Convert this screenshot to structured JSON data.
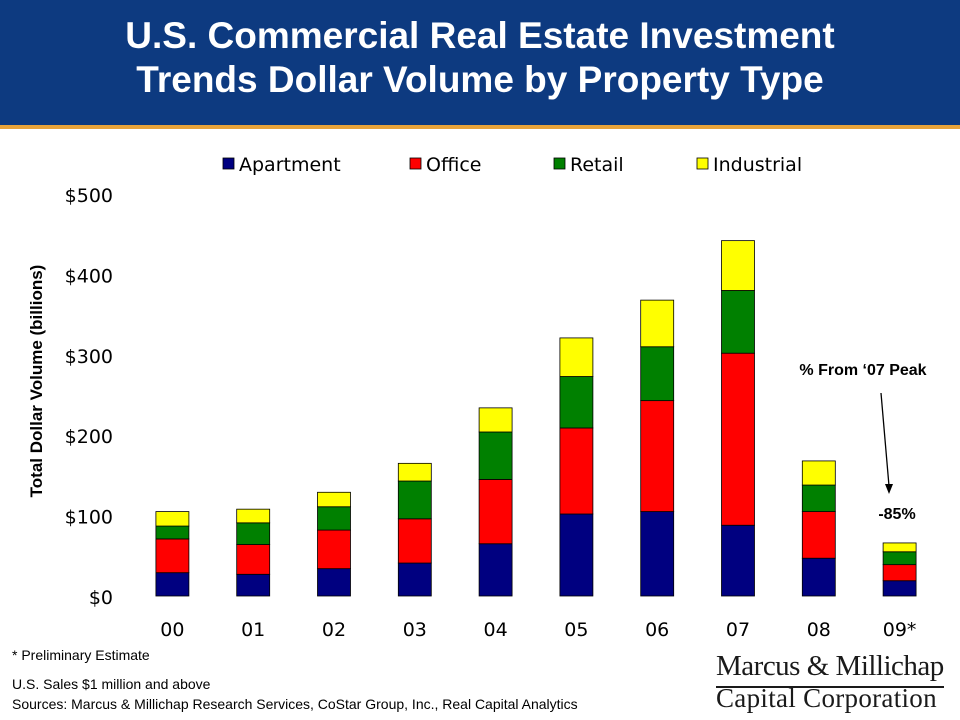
{
  "header": {
    "title_line1": "U.S. Commercial Real Estate Investment",
    "title_line2": "Trends Dollar Volume by Property Type"
  },
  "chart_data": {
    "type": "bar",
    "stacked": true,
    "categories": [
      "00",
      "01",
      "02",
      "03",
      "04",
      "05",
      "06",
      "07",
      "08",
      "09*"
    ],
    "series": [
      {
        "name": "Apartment",
        "color": "#000080",
        "values": [
          29,
          27,
          34,
          41,
          65,
          102,
          105,
          88,
          47,
          19
        ]
      },
      {
        "name": "Office",
        "color": "#ff0000",
        "values": [
          42,
          37,
          48,
          55,
          80,
          107,
          138,
          214,
          58,
          20
        ]
      },
      {
        "name": "Retail",
        "color": "#008000",
        "values": [
          16,
          27,
          29,
          47,
          59,
          64,
          67,
          78,
          33,
          16
        ]
      },
      {
        "name": "Industrial",
        "color": "#ffff00",
        "values": [
          18,
          17,
          18,
          22,
          30,
          48,
          58,
          62,
          30,
          11
        ]
      }
    ],
    "ylabel": "Total Dollar Volume (billions)",
    "ylim": [
      0,
      500
    ],
    "yticks": [
      {
        "value": 0,
        "label": "$0"
      },
      {
        "value": 100,
        "label": "$100"
      },
      {
        "value": 200,
        "label": "$200"
      },
      {
        "value": 300,
        "label": "$300"
      },
      {
        "value": 400,
        "label": "$400"
      },
      {
        "value": 500,
        "label": "$500"
      }
    ],
    "grid": false,
    "legend": "top",
    "annotations": {
      "peak_label": "% From ‘07 Peak",
      "change_label": "-85%",
      "target_category": "09*"
    }
  },
  "footnotes": {
    "preliminary": "* Preliminary Estimate",
    "scope": "U.S. Sales $1 million and above",
    "sources": "Sources: Marcus & Millichap Research Services, CoStar Group, Inc., Real Capital Analytics"
  },
  "logo": {
    "line1": "Marcus & Millichap",
    "line2": "Capital Corporation"
  }
}
